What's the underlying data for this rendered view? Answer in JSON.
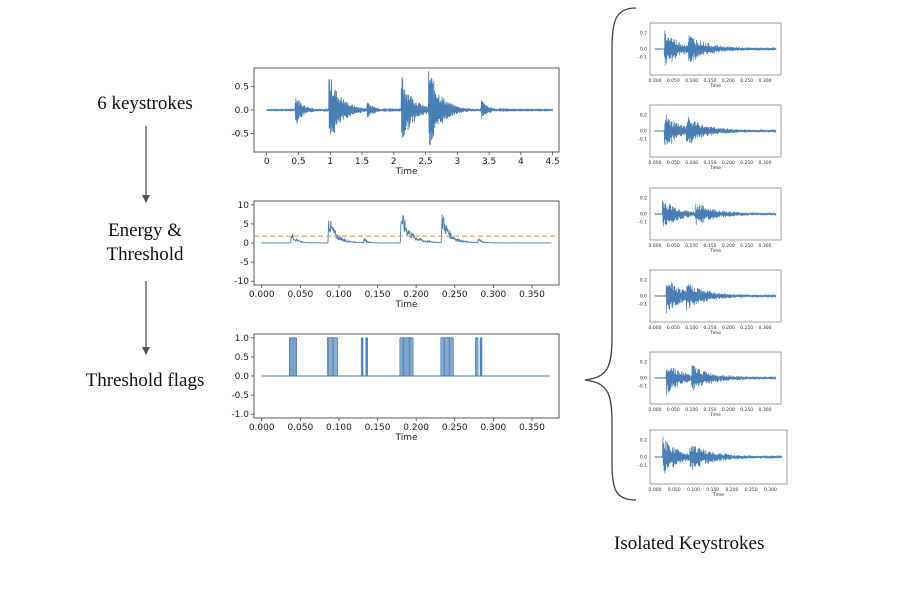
{
  "stages": [
    {
      "label": "6 keystrokes"
    },
    {
      "label": "Energy &\nThreshold"
    },
    {
      "label": "Threshold flags"
    }
  ],
  "footer": {
    "label": "Isolated Keystrokes"
  },
  "colors": {
    "signal": "#4a7fb5",
    "threshold": "#e8952f",
    "arrow": "#555555",
    "brace": "#444444"
  },
  "chart_data": [
    {
      "type": "line",
      "name": "raw-audio",
      "xlabel": "Time",
      "xlim": [
        -0.2,
        4.6
      ],
      "ylim": [
        -0.9,
        0.9
      ],
      "xticks": [
        "0",
        "0.5",
        "1",
        "1.5",
        "2",
        "2.5",
        "3",
        "3.5",
        "4",
        "4.5"
      ],
      "yticks": [
        "0.5",
        "0.0",
        "-0.5"
      ],
      "bursts": [
        {
          "t": 0.45,
          "amp": 0.35,
          "decay": 0.12
        },
        {
          "t": 0.98,
          "amp": 0.82,
          "decay": 0.18
        },
        {
          "t": 1.58,
          "amp": 0.2,
          "decay": 0.08
        },
        {
          "t": 2.12,
          "amp": 0.78,
          "decay": 0.17
        },
        {
          "t": 2.55,
          "amp": 0.9,
          "decay": 0.18
        },
        {
          "t": 3.38,
          "amp": 0.22,
          "decay": 0.09
        }
      ]
    },
    {
      "type": "line",
      "name": "energy",
      "xlabel": "Time",
      "xlim": [
        -0.01,
        0.385
      ],
      "ylim": [
        -11,
        11
      ],
      "xticks": [
        "0.000",
        "0.050",
        "0.100",
        "0.150",
        "0.200",
        "0.250",
        "0.300",
        "0.350"
      ],
      "yticks": [
        "10",
        "5",
        "0",
        "-5",
        "-10"
      ],
      "threshold": 1.8,
      "bursts": [
        {
          "t": 0.038,
          "amp": 3.5,
          "decay": 0.006
        },
        {
          "t": 0.086,
          "amp": 8.2,
          "decay": 0.01
        },
        {
          "t": 0.132,
          "amp": 1.5,
          "decay": 0.004
        },
        {
          "t": 0.18,
          "amp": 9.6,
          "decay": 0.012
        },
        {
          "t": 0.233,
          "amp": 9.4,
          "decay": 0.01
        },
        {
          "t": 0.28,
          "amp": 1.6,
          "decay": 0.004
        }
      ]
    },
    {
      "type": "line",
      "name": "threshold-flags",
      "xlabel": "Time",
      "xlim": [
        -0.01,
        0.385
      ],
      "ylim": [
        -1.1,
        1.1
      ],
      "xticks": [
        "0.000",
        "0.050",
        "0.100",
        "0.150",
        "0.200",
        "0.250",
        "0.300",
        "0.350"
      ],
      "yticks": [
        "1.0",
        "0.5",
        "0.0",
        "-0.5",
        "-1.0"
      ],
      "flags": [
        {
          "start": 0.036,
          "end": 0.045
        },
        {
          "start": 0.085,
          "end": 0.098
        },
        {
          "start": 0.129,
          "end": 0.131
        },
        {
          "start": 0.135,
          "end": 0.137
        },
        {
          "start": 0.179,
          "end": 0.196
        },
        {
          "start": 0.232,
          "end": 0.248
        },
        {
          "start": 0.277,
          "end": 0.28
        },
        {
          "start": 0.283,
          "end": 0.285
        }
      ]
    }
  ],
  "keystroke_clips": {
    "xlabel": "Time",
    "xticks": [
      "0.000",
      "0.050",
      "0.100",
      "0.150",
      "0.200",
      "0.250",
      "0.300"
    ],
    "yticks": [
      "0.2",
      "0.0",
      "-0.1"
    ],
    "clips": [
      {
        "onsets": [
          0.025,
          0.09
        ],
        "amp": 0.27
      },
      {
        "onsets": [
          0.025,
          0.085
        ],
        "amp": 0.25
      },
      {
        "onsets": [
          0.02,
          0.11
        ],
        "amp": 0.22
      },
      {
        "onsets": [
          0.03,
          0.085
        ],
        "amp": 0.25
      },
      {
        "onsets": [
          0.03,
          0.1
        ],
        "amp": 0.24
      },
      {
        "onsets": [
          0.02,
          0.09
        ],
        "amp": 0.26
      }
    ]
  }
}
